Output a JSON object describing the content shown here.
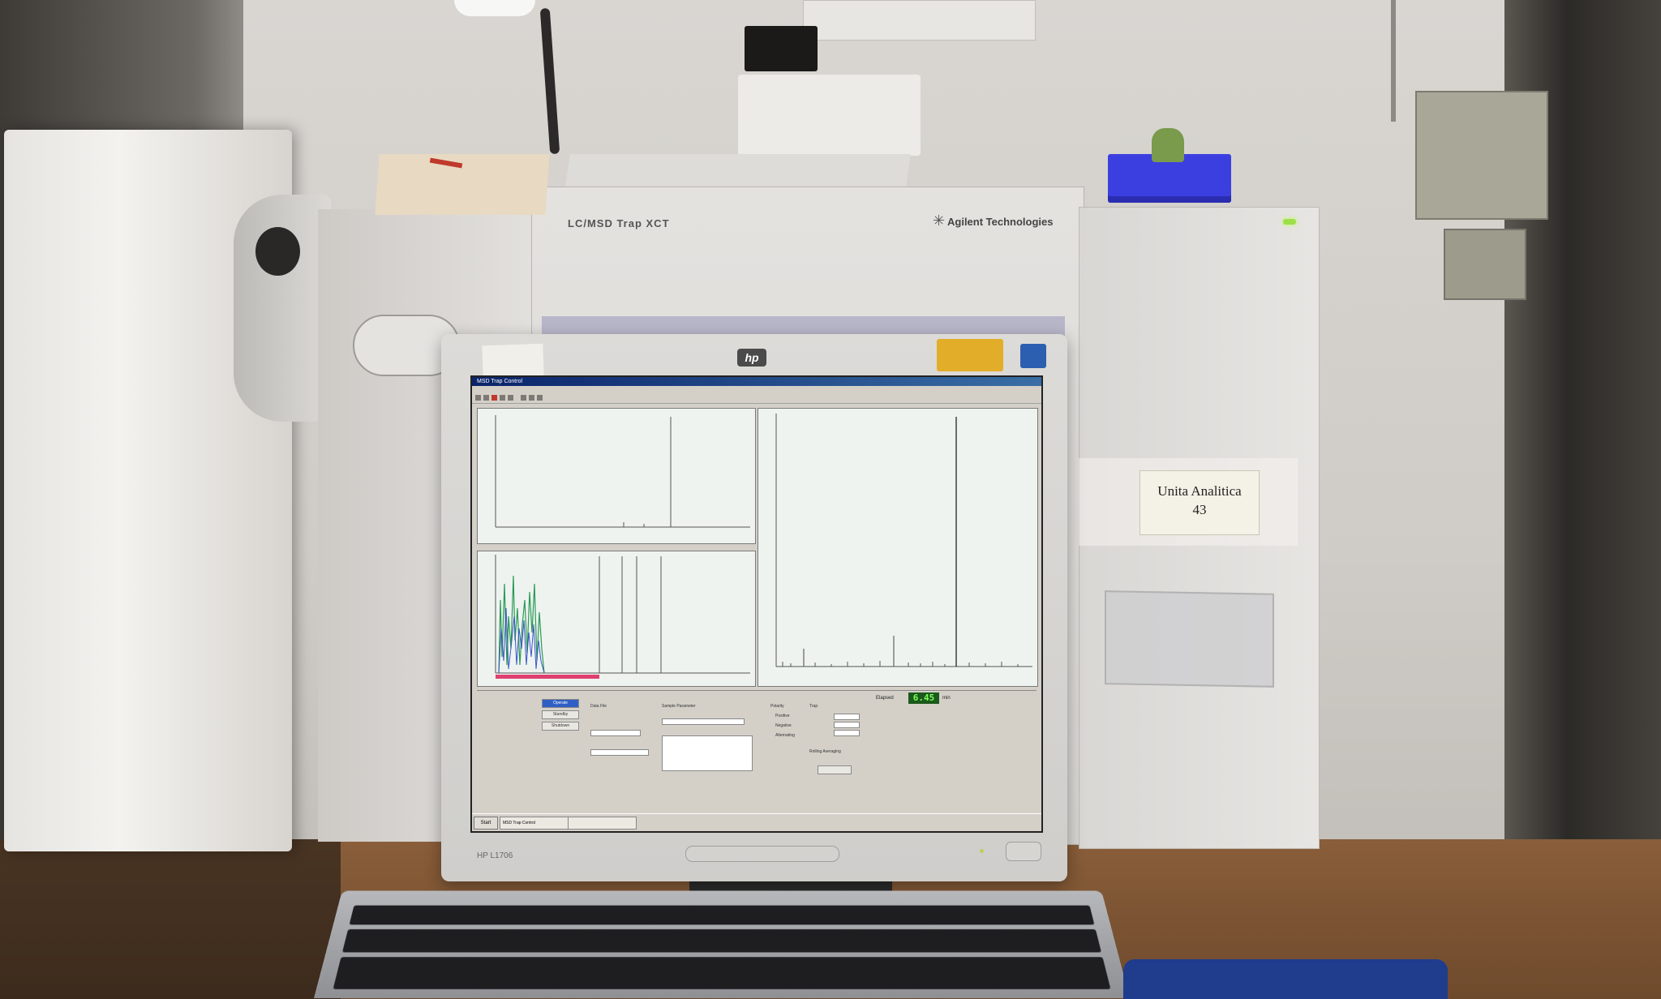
{
  "scene": {
    "instrument": {
      "model_label": "LC/MSD Trap XCT",
      "brand_label": "Agilent Technologies",
      "unit_tag": {
        "line1": "Unita Analitica",
        "line2": "43"
      }
    },
    "monitor": {
      "brand_logo": "hp",
      "model_text": "HP L1706"
    },
    "screen": {
      "window_title": "MSD Trap Control",
      "elapsed": {
        "label": "Elapsed",
        "value": "6.45",
        "unit": "min"
      },
      "control_panel": {
        "operate_button": "Operate",
        "standby_button": "Standby",
        "shutdown_button": "Shutdown",
        "data_file_label": "Data File",
        "sample_params_label": "Sample Parameter",
        "polarity_label": "Polarity",
        "positive_label": "Positive",
        "negative_label": "Negative",
        "alternating_label": "Alternating",
        "trap_label": "Trap",
        "rolling_label": "Rolling Averaging"
      },
      "taskbar": {
        "start_label": "Start",
        "task1": "MSD Trap Control"
      }
    }
  },
  "colors": {
    "accent_instrument_led": "#9fe04a",
    "elapsed_display_bg": "#1b5a1b",
    "elapsed_display_fg": "#7dff5a",
    "spectrum_bg": "#eef3f0",
    "tray_blue": "#3c3fe0"
  }
}
